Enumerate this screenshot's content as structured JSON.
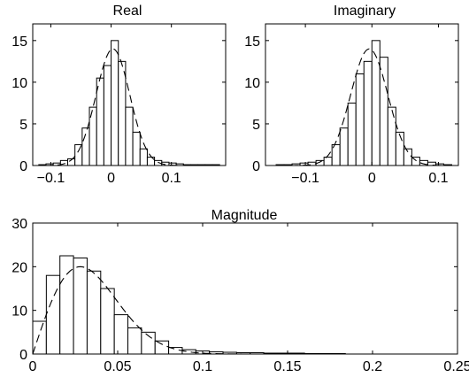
{
  "chart_data": [
    {
      "type": "bar",
      "title": "Real",
      "xlim": [
        -0.13,
        0.19
      ],
      "ylim": [
        0,
        17
      ],
      "xticks": [
        -0.1,
        0,
        0.1
      ],
      "xtick_labels": [
        "−0.1",
        "0",
        "0.1"
      ],
      "yticks": [
        0,
        5,
        10,
        15
      ],
      "ytick_labels": [
        "0",
        "5",
        "10",
        "15"
      ],
      "grid": false,
      "bins": [
        {
          "x0": -0.12,
          "x1": -0.108,
          "value": 0.1
        },
        {
          "x0": -0.108,
          "x1": -0.096,
          "value": 0.2
        },
        {
          "x0": -0.096,
          "x1": -0.084,
          "value": 0.3
        },
        {
          "x0": -0.084,
          "x1": -0.072,
          "value": 0.6
        },
        {
          "x0": -0.072,
          "x1": -0.06,
          "value": 0.8
        },
        {
          "x0": -0.06,
          "x1": -0.048,
          "value": 2.5
        },
        {
          "x0": -0.048,
          "x1": -0.036,
          "value": 4.5
        },
        {
          "x0": -0.036,
          "x1": -0.024,
          "value": 7
        },
        {
          "x0": -0.024,
          "x1": -0.012,
          "value": 10.5
        },
        {
          "x0": -0.012,
          "x1": 0,
          "value": 12
        },
        {
          "x0": 0,
          "x1": 0.012,
          "value": 15
        },
        {
          "x0": 0.012,
          "x1": 0.024,
          "value": 12.5
        },
        {
          "x0": 0.024,
          "x1": 0.036,
          "value": 7
        },
        {
          "x0": 0.036,
          "x1": 0.048,
          "value": 4
        },
        {
          "x0": 0.048,
          "x1": 0.06,
          "value": 2
        },
        {
          "x0": 0.06,
          "x1": 0.072,
          "value": 1
        },
        {
          "x0": 0.072,
          "x1": 0.084,
          "value": 0.6
        },
        {
          "x0": 0.084,
          "x1": 0.096,
          "value": 0.4
        },
        {
          "x0": 0.096,
          "x1": 0.108,
          "value": 0.3
        },
        {
          "x0": 0.108,
          "x1": 0.12,
          "value": 0.2
        },
        {
          "x0": 0.12,
          "x1": 0.132,
          "value": 0.1
        },
        {
          "x0": 0.132,
          "x1": 0.144,
          "value": 0.1
        },
        {
          "x0": 0.144,
          "x1": 0.156,
          "value": 0.1
        },
        {
          "x0": 0.156,
          "x1": 0.168,
          "value": 0.1
        },
        {
          "x0": 0.168,
          "x1": 0.18,
          "value": 0.1
        }
      ],
      "fit": {
        "shape": "gaussian",
        "peak": 14,
        "center": 0.003,
        "sigma": 0.028,
        "style": "dashed"
      }
    },
    {
      "type": "bar",
      "title": "Imaginary",
      "xlim": [
        -0.16,
        0.13
      ],
      "ylim": [
        0,
        17
      ],
      "xticks": [
        -0.1,
        0,
        0.1
      ],
      "xtick_labels": [
        "−0.1",
        "0",
        "0.1"
      ],
      "yticks": [
        0,
        5,
        10,
        15
      ],
      "ytick_labels": [
        "0",
        "5",
        "10",
        "15"
      ],
      "grid": false,
      "bins": [
        {
          "x0": -0.144,
          "x1": -0.132,
          "value": 0.1
        },
        {
          "x0": -0.132,
          "x1": -0.12,
          "value": 0.1
        },
        {
          "x0": -0.12,
          "x1": -0.108,
          "value": 0.2
        },
        {
          "x0": -0.108,
          "x1": -0.096,
          "value": 0.3
        },
        {
          "x0": -0.096,
          "x1": -0.084,
          "value": 0.4
        },
        {
          "x0": -0.084,
          "x1": -0.072,
          "value": 0.6
        },
        {
          "x0": -0.072,
          "x1": -0.06,
          "value": 1
        },
        {
          "x0": -0.06,
          "x1": -0.048,
          "value": 2.5
        },
        {
          "x0": -0.048,
          "x1": -0.036,
          "value": 4.5
        },
        {
          "x0": -0.036,
          "x1": -0.024,
          "value": 7.5
        },
        {
          "x0": -0.024,
          "x1": -0.012,
          "value": 11
        },
        {
          "x0": -0.012,
          "x1": 0,
          "value": 12.5
        },
        {
          "x0": 0,
          "x1": 0.012,
          "value": 15
        },
        {
          "x0": 0.012,
          "x1": 0.024,
          "value": 13
        },
        {
          "x0": 0.024,
          "x1": 0.036,
          "value": 7
        },
        {
          "x0": 0.036,
          "x1": 0.048,
          "value": 4
        },
        {
          "x0": 0.048,
          "x1": 0.06,
          "value": 2
        },
        {
          "x0": 0.06,
          "x1": 0.072,
          "value": 1
        },
        {
          "x0": 0.072,
          "x1": 0.084,
          "value": 0.6
        },
        {
          "x0": 0.084,
          "x1": 0.096,
          "value": 0.4
        },
        {
          "x0": 0.096,
          "x1": 0.108,
          "value": 0.2
        },
        {
          "x0": 0.108,
          "x1": 0.12,
          "value": 0.1
        }
      ],
      "fit": {
        "shape": "gaussian",
        "peak": 14,
        "center": -0.004,
        "sigma": 0.028,
        "style": "dashed"
      }
    },
    {
      "type": "bar",
      "title": "Magnitude",
      "xlim": [
        0,
        0.25
      ],
      "ylim": [
        0,
        30
      ],
      "xticks": [
        0,
        0.05,
        0.1,
        0.15,
        0.2,
        0.25
      ],
      "xtick_labels": [
        "0",
        "0.05",
        "0.1",
        "0.15",
        "0.2",
        "0.25"
      ],
      "yticks": [
        0,
        10,
        20,
        30
      ],
      "ytick_labels": [
        "0",
        "10",
        "20",
        "30"
      ],
      "grid": false,
      "bins": [
        {
          "x0": 0,
          "x1": 0.008,
          "value": 7.5
        },
        {
          "x0": 0.008,
          "x1": 0.016,
          "value": 18
        },
        {
          "x0": 0.016,
          "x1": 0.024,
          "value": 22.5
        },
        {
          "x0": 0.024,
          "x1": 0.032,
          "value": 22
        },
        {
          "x0": 0.032,
          "x1": 0.04,
          "value": 19
        },
        {
          "x0": 0.04,
          "x1": 0.048,
          "value": 15
        },
        {
          "x0": 0.048,
          "x1": 0.056,
          "value": 9
        },
        {
          "x0": 0.056,
          "x1": 0.064,
          "value": 6
        },
        {
          "x0": 0.064,
          "x1": 0.072,
          "value": 5
        },
        {
          "x0": 0.072,
          "x1": 0.08,
          "value": 3
        },
        {
          "x0": 0.08,
          "x1": 0.088,
          "value": 1.5
        },
        {
          "x0": 0.088,
          "x1": 0.096,
          "value": 1
        },
        {
          "x0": 0.096,
          "x1": 0.104,
          "value": 0.7
        },
        {
          "x0": 0.104,
          "x1": 0.112,
          "value": 0.5
        },
        {
          "x0": 0.112,
          "x1": 0.12,
          "value": 0.4
        },
        {
          "x0": 0.12,
          "x1": 0.128,
          "value": 0.3
        },
        {
          "x0": 0.128,
          "x1": 0.136,
          "value": 0.3
        },
        {
          "x0": 0.136,
          "x1": 0.144,
          "value": 0.2
        },
        {
          "x0": 0.144,
          "x1": 0.152,
          "value": 0.2
        },
        {
          "x0": 0.152,
          "x1": 0.16,
          "value": 0.2
        },
        {
          "x0": 0.16,
          "x1": 0.168,
          "value": 0.1
        },
        {
          "x0": 0.168,
          "x1": 0.176,
          "value": 0.1
        },
        {
          "x0": 0.176,
          "x1": 0.184,
          "value": 0.1
        }
      ],
      "fit": {
        "shape": "rayleigh",
        "peak": 20,
        "mode": 0.028,
        "style": "dashed"
      }
    }
  ]
}
